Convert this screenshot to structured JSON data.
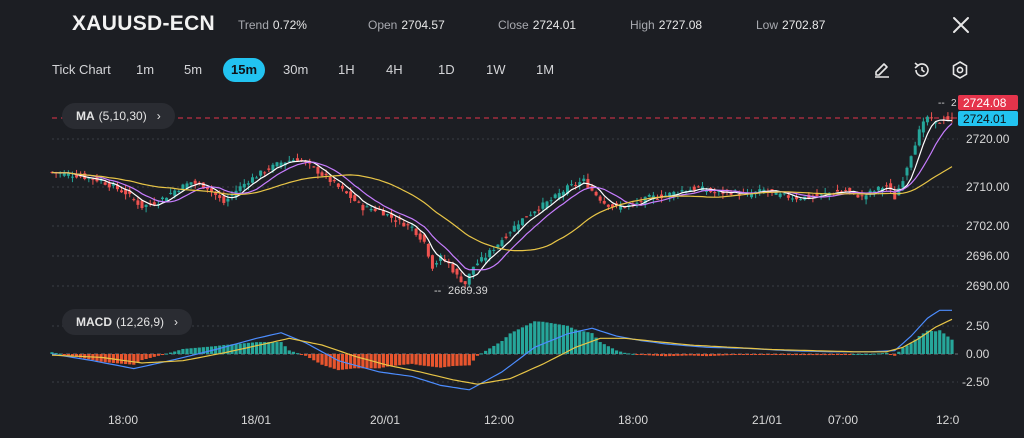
{
  "header": {
    "symbol": "XAUUSD-ECN",
    "trend": {
      "label": "Trend",
      "value": "0.72%"
    },
    "open": {
      "label": "Open",
      "value": "2704.57"
    },
    "close": {
      "label": "Close",
      "value": "2724.01"
    },
    "high": {
      "label": "High",
      "value": "2727.08"
    },
    "low": {
      "label": "Low",
      "value": "2702.87"
    }
  },
  "timeframes": [
    "Tick Chart",
    "1m",
    "5m",
    "15m",
    "30m",
    "1H",
    "4H",
    "1D",
    "1W",
    "1M"
  ],
  "active_timeframe": "15m",
  "tools": [
    "pencil-icon",
    "history-icon",
    "settings-icon"
  ],
  "ma_indicator": {
    "name": "MA",
    "params": "(5,10,30)"
  },
  "macd_indicator": {
    "name": "MACD",
    "params": "(12,26,9)"
  },
  "colors": {
    "up": "#26a69a",
    "down": "#ef5350",
    "ma5": "#ffffff",
    "ma10": "#c77dff",
    "ma30": "#e8c547",
    "dif": "#4c8dff",
    "dea": "#e8c547",
    "close_tag": "#22c3f0",
    "high_tag": "#e5344b",
    "background": "#1c1e23"
  },
  "chart_data": {
    "type": "candlestick",
    "price_axis_ticks": [
      "2720.00",
      "2710.00",
      "2702.00",
      "2696.00",
      "2690.00"
    ],
    "time_axis_ticks": [
      "18:00",
      "18/01",
      "20/01",
      "12:00",
      "18:00",
      "21/01",
      "07:00",
      "12:0"
    ],
    "last_price_tag": "2724.01",
    "high_tag": "2724.08",
    "high_tag_prefix": "2",
    "min_annotation": "2689.39",
    "ylim": [
      2686,
      2729
    ],
    "close_path": [
      [
        0,
        2713.2
      ],
      [
        6,
        2712.6
      ],
      [
        12,
        2711.5
      ],
      [
        18,
        2709.0
      ],
      [
        22,
        2706.2
      ],
      [
        26,
        2707.3
      ],
      [
        30,
        2709.5
      ],
      [
        34,
        2711.2
      ],
      [
        38,
        2710.1
      ],
      [
        42,
        2707.0
      ],
      [
        45,
        2709.5
      ],
      [
        48,
        2711.5
      ],
      [
        52,
        2713.5
      ],
      [
        56,
        2715.2
      ],
      [
        60,
        2716.0
      ],
      [
        64,
        2714.0
      ],
      [
        68,
        2711.5
      ],
      [
        72,
        2708.8
      ],
      [
        76,
        2706.0
      ],
      [
        80,
        2705.5
      ],
      [
        84,
        2703.5
      ],
      [
        88,
        2702.0
      ],
      [
        91,
        2699.0
      ],
      [
        93,
        2694.0
      ],
      [
        95,
        2695.8
      ],
      [
        97,
        2694.5
      ],
      [
        99,
        2692.0
      ],
      [
        101,
        2690.5
      ],
      [
        103,
        2694.0
      ],
      [
        106,
        2696.0
      ],
      [
        110,
        2699.5
      ],
      [
        114,
        2703.0
      ],
      [
        118,
        2705.5
      ],
      [
        122,
        2707.5
      ],
      [
        126,
        2710.0
      ],
      [
        130,
        2711.5
      ],
      [
        132,
        2709.5
      ],
      [
        135,
        2707.0
      ],
      [
        138,
        2706.0
      ],
      [
        142,
        2706.5
      ],
      [
        146,
        2708.0
      ],
      [
        150,
        2708.5
      ],
      [
        154,
        2709.5
      ],
      [
        158,
        2710.0
      ],
      [
        162,
        2709.0
      ],
      [
        166,
        2709.2
      ],
      [
        170,
        2708.5
      ],
      [
        174,
        2709.5
      ],
      [
        178,
        2708.5
      ],
      [
        182,
        2708.0
      ],
      [
        186,
        2708.2
      ],
      [
        190,
        2709.0
      ],
      [
        194,
        2709.5
      ],
      [
        198,
        2708.2
      ],
      [
        202,
        2709.8
      ],
      [
        204,
        2710.5
      ],
      [
        206,
        2708.0
      ],
      [
        208,
        2712.0
      ],
      [
        210,
        2717.0
      ],
      [
        212,
        2721.5
      ],
      [
        214,
        2724.5
      ],
      [
        216,
        2723.0
      ],
      [
        218,
        2724.2
      ],
      [
        220,
        2724.01
      ]
    ],
    "macd_ylim": [
      -3.8,
      4.2
    ],
    "macd_axis_ticks": [
      "2.50",
      "0.00",
      "-2.50"
    ],
    "dif_path": [
      [
        0,
        0.0
      ],
      [
        10,
        -0.6
      ],
      [
        20,
        -1.3
      ],
      [
        30,
        -0.5
      ],
      [
        40,
        0.4
      ],
      [
        50,
        1.4
      ],
      [
        56,
        1.9
      ],
      [
        62,
        1.0
      ],
      [
        70,
        -0.6
      ],
      [
        80,
        -1.6
      ],
      [
        88,
        -2.0
      ],
      [
        95,
        -2.8
      ],
      [
        102,
        -3.2
      ],
      [
        110,
        -1.6
      ],
      [
        118,
        0.6
      ],
      [
        126,
        1.8
      ],
      [
        132,
        2.3
      ],
      [
        138,
        1.6
      ],
      [
        144,
        1.2
      ],
      [
        150,
        0.9
      ],
      [
        160,
        0.6
      ],
      [
        170,
        0.5
      ],
      [
        180,
        0.3
      ],
      [
        190,
        0.2
      ],
      [
        200,
        0.2
      ],
      [
        206,
        0.3
      ],
      [
        210,
        1.6
      ],
      [
        214,
        3.2
      ],
      [
        217,
        3.9
      ],
      [
        220,
        3.9
      ]
    ],
    "dea_path": [
      [
        0,
        -0.1
      ],
      [
        12,
        -0.3
      ],
      [
        22,
        -0.8
      ],
      [
        32,
        -0.6
      ],
      [
        42,
        0.1
      ],
      [
        52,
        0.9
      ],
      [
        58,
        1.4
      ],
      [
        66,
        0.8
      ],
      [
        74,
        -0.2
      ],
      [
        82,
        -1.0
      ],
      [
        90,
        -1.6
      ],
      [
        98,
        -2.3
      ],
      [
        104,
        -2.7
      ],
      [
        112,
        -2.2
      ],
      [
        120,
        -0.9
      ],
      [
        128,
        0.6
      ],
      [
        134,
        1.4
      ],
      [
        140,
        1.4
      ],
      [
        148,
        1.1
      ],
      [
        156,
        0.8
      ],
      [
        166,
        0.6
      ],
      [
        176,
        0.4
      ],
      [
        186,
        0.3
      ],
      [
        196,
        0.2
      ],
      [
        204,
        0.2
      ],
      [
        208,
        0.6
      ],
      [
        212,
        1.4
      ],
      [
        216,
        2.4
      ],
      [
        220,
        3.1
      ]
    ]
  }
}
